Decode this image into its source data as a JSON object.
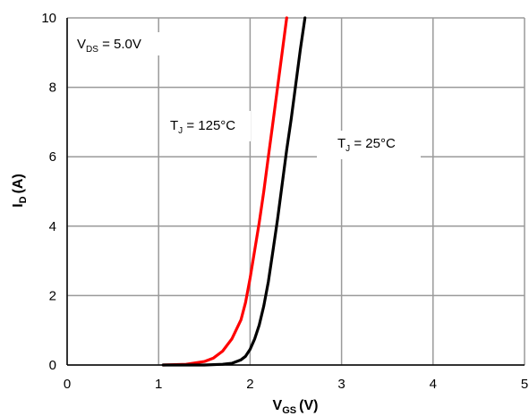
{
  "chart_data": {
    "type": "line",
    "title": "",
    "xlabel": {
      "main": "V",
      "sub": "GS",
      "unit": "(V)"
    },
    "ylabel": {
      "main": "I",
      "sub": "D",
      "unit": "(A)"
    },
    "xlim": [
      0,
      5
    ],
    "ylim": [
      0,
      10
    ],
    "x_ticks": [
      "0",
      "1",
      "2",
      "3",
      "4",
      "5"
    ],
    "y_ticks": [
      "0",
      "2",
      "4",
      "6",
      "8",
      "10"
    ],
    "grid": true,
    "annotations": [
      {
        "id": "vds",
        "main": "V",
        "sub": "DS",
        "rest": " = 5.0V"
      },
      {
        "id": "tj125",
        "main": "T",
        "sub": "J",
        "rest": " = 125°C"
      },
      {
        "id": "tj25",
        "main": "T",
        "sub": "J",
        "rest": " = 25°C"
      }
    ],
    "series": [
      {
        "color": "#ff0000",
        "x": [
          1.05,
          1.3,
          1.5,
          1.6,
          1.7,
          1.8,
          1.9,
          1.95,
          2.0,
          2.05,
          2.1,
          2.15,
          2.2,
          2.25,
          2.3,
          2.35,
          2.4
        ],
        "y": [
          0.0,
          0.02,
          0.1,
          0.2,
          0.4,
          0.75,
          1.3,
          1.8,
          2.5,
          3.3,
          4.1,
          5.0,
          6.0,
          7.0,
          8.0,
          9.0,
          10.0
        ]
      },
      {
        "color": "#000000",
        "x": [
          1.05,
          1.5,
          1.7,
          1.8,
          1.9,
          1.95,
          2.0,
          2.05,
          2.1,
          2.15,
          2.2,
          2.25,
          2.3,
          2.35,
          2.4,
          2.45,
          2.5,
          2.55,
          2.6
        ],
        "y": [
          0.0,
          0.0,
          0.02,
          0.05,
          0.15,
          0.25,
          0.45,
          0.75,
          1.15,
          1.7,
          2.4,
          3.3,
          4.2,
          5.2,
          6.2,
          7.1,
          8.1,
          9.1,
          10.0
        ]
      }
    ]
  }
}
